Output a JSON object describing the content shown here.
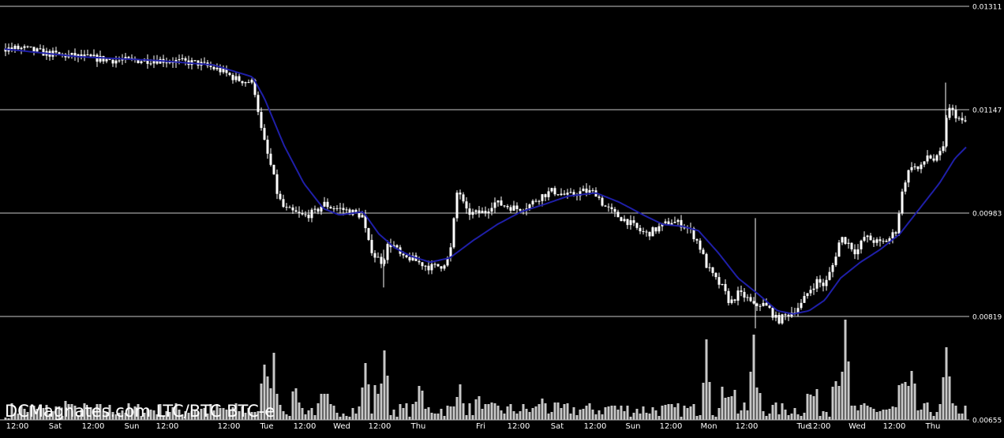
{
  "chart_data": {
    "type": "candlestick",
    "title": "DCMagnates.com LTC/BTC BTC-e",
    "y_ticks": [
      0.00655,
      0.00819,
      0.00983,
      0.01147,
      0.01311
    ],
    "y_tick_labels": [
      "0.00655",
      "0.00819",
      "0.00983",
      "0.01147",
      "0.01311"
    ],
    "ylim": [
      0.00655,
      0.01311
    ],
    "y_axis_side": "right",
    "x_tick_labels": [
      "12:00",
      "Sat",
      "12:00",
      "Sun",
      "12:00",
      "12:00",
      "Tue",
      "12:00",
      "Wed",
      "12:00",
      "Thu",
      "Fri",
      "12:00",
      "Sat",
      "12:00",
      "Sun",
      "12:00",
      "Mon",
      "12:00",
      "Tue",
      "12:00",
      "Wed",
      "12:00",
      "Thu"
    ],
    "grid": true,
    "volume_panel": true,
    "moving_average": true,
    "colors": {
      "background": "#000000",
      "grid": "#c8c8c8",
      "candle_body": "#ffffff",
      "candle_wick": "#ffffff",
      "moving_average": "#1f1fa8",
      "volume": "#c8c8c8",
      "text": "#ffffff"
    },
    "price_anchors": [
      [
        0,
        0.01244
      ],
      [
        30,
        0.01244
      ],
      [
        60,
        0.01236
      ],
      [
        100,
        0.01231
      ],
      [
        150,
        0.01225
      ],
      [
        200,
        0.01226
      ],
      [
        250,
        0.01221
      ],
      [
        280,
        0.01209
      ],
      [
        300,
        0.01195
      ],
      [
        320,
        0.0119
      ],
      [
        325,
        0.01165
      ],
      [
        330,
        0.0112
      ],
      [
        338,
        0.0108
      ],
      [
        345,
        0.0105
      ],
      [
        352,
        0.0101
      ],
      [
        360,
        0.0099
      ],
      [
        370,
        0.00985
      ],
      [
        385,
        0.00978
      ],
      [
        400,
        0.00985
      ],
      [
        410,
        0.00998
      ],
      [
        420,
        0.00992
      ],
      [
        430,
        0.0099
      ],
      [
        445,
        0.00985
      ],
      [
        460,
        0.00978
      ],
      [
        465,
        0.0094
      ],
      [
        475,
        0.00915
      ],
      [
        485,
        0.00905
      ],
      [
        492,
        0.00935
      ],
      [
        500,
        0.0093
      ],
      [
        510,
        0.0091
      ],
      [
        520,
        0.00912
      ],
      [
        530,
        0.00905
      ],
      [
        545,
        0.00897
      ],
      [
        560,
        0.009
      ],
      [
        570,
        0.00915
      ],
      [
        580,
        0.01026
      ],
      [
        590,
        0.00985
      ],
      [
        600,
        0.00982
      ],
      [
        615,
        0.00985
      ],
      [
        625,
        0.01
      ],
      [
        640,
        0.00995
      ],
      [
        655,
        0.0099
      ],
      [
        670,
        0.00995
      ],
      [
        685,
        0.0101
      ],
      [
        700,
        0.01018
      ],
      [
        720,
        0.0101
      ],
      [
        740,
        0.01018
      ],
      [
        755,
        0.01015
      ],
      [
        765,
        0.00995
      ],
      [
        780,
        0.0098
      ],
      [
        795,
        0.0097
      ],
      [
        810,
        0.00955
      ],
      [
        820,
        0.0095
      ],
      [
        835,
        0.0096
      ],
      [
        850,
        0.0097
      ],
      [
        865,
        0.00965
      ],
      [
        875,
        0.00955
      ],
      [
        885,
        0.00935
      ],
      [
        895,
        0.009
      ],
      [
        905,
        0.0088
      ],
      [
        915,
        0.00865
      ],
      [
        925,
        0.0084
      ],
      [
        935,
        0.00855
      ],
      [
        945,
        0.0085
      ],
      [
        955,
        0.00835
      ],
      [
        965,
        0.0084
      ],
      [
        975,
        0.0083
      ],
      [
        985,
        0.00812
      ],
      [
        995,
        0.0082
      ],
      [
        1005,
        0.00828
      ],
      [
        1015,
        0.00838
      ],
      [
        1025,
        0.0086
      ],
      [
        1035,
        0.00875
      ],
      [
        1045,
        0.00868
      ],
      [
        1055,
        0.009
      ],
      [
        1065,
        0.00945
      ],
      [
        1075,
        0.00935
      ],
      [
        1085,
        0.0092
      ],
      [
        1095,
        0.00945
      ],
      [
        1105,
        0.0094
      ],
      [
        1115,
        0.00935
      ],
      [
        1125,
        0.0094
      ],
      [
        1135,
        0.00955
      ],
      [
        1145,
        0.0103
      ],
      [
        1155,
        0.0106
      ],
      [
        1165,
        0.0105
      ],
      [
        1175,
        0.01075
      ],
      [
        1185,
        0.01065
      ],
      [
        1195,
        0.01085
      ],
      [
        1200,
        0.0115
      ],
      [
        1210,
        0.0114
      ],
      [
        1220,
        0.01125
      ],
      [
        1226,
        0.0113
      ]
    ],
    "ma_anchors": [
      [
        0,
        0.01244
      ],
      [
        100,
        0.01231
      ],
      [
        200,
        0.01225
      ],
      [
        270,
        0.01218
      ],
      [
        320,
        0.01199
      ],
      [
        335,
        0.01165
      ],
      [
        360,
        0.0109
      ],
      [
        385,
        0.0103
      ],
      [
        410,
        0.0099
      ],
      [
        430,
        0.0098
      ],
      [
        460,
        0.00985
      ],
      [
        480,
        0.0095
      ],
      [
        500,
        0.00928
      ],
      [
        520,
        0.00915
      ],
      [
        545,
        0.00905
      ],
      [
        570,
        0.00912
      ],
      [
        600,
        0.0094
      ],
      [
        630,
        0.00965
      ],
      [
        660,
        0.00985
      ],
      [
        690,
        0.00997
      ],
      [
        720,
        0.0101
      ],
      [
        755,
        0.01015
      ],
      [
        785,
        0.01
      ],
      [
        815,
        0.0098
      ],
      [
        840,
        0.00965
      ],
      [
        865,
        0.00962
      ],
      [
        885,
        0.00955
      ],
      [
        910,
        0.0092
      ],
      [
        935,
        0.0088
      ],
      [
        960,
        0.00855
      ],
      [
        985,
        0.00828
      ],
      [
        1005,
        0.00823
      ],
      [
        1025,
        0.00828
      ],
      [
        1045,
        0.00845
      ],
      [
        1065,
        0.0088
      ],
      [
        1090,
        0.00905
      ],
      [
        1115,
        0.00925
      ],
      [
        1140,
        0.0095
      ],
      [
        1165,
        0.0099
      ],
      [
        1190,
        0.0103
      ],
      [
        1210,
        0.0107
      ],
      [
        1226,
        0.0109
      ]
    ],
    "spikes": [
      [
        957,
        0.00975,
        0.008
      ],
      [
        486,
        0.00925,
        0.00865
      ],
      [
        1198,
        0.0119,
        0.0108
      ]
    ],
    "volume_bars": [
      [
        7,
        3
      ],
      [
        86,
        25
      ],
      [
        94,
        8
      ],
      [
        335,
        70
      ],
      [
        340,
        88
      ],
      [
        347,
        85
      ],
      [
        352,
        40
      ],
      [
        375,
        40
      ],
      [
        412,
        38
      ],
      [
        463,
        72
      ],
      [
        481,
        63
      ],
      [
        487,
        88
      ],
      [
        531,
        43
      ],
      [
        583,
        45
      ],
      [
        608,
        30
      ],
      [
        688,
        30
      ],
      [
        775,
        18
      ],
      [
        895,
        102
      ],
      [
        918,
        55
      ],
      [
        926,
        58
      ],
      [
        955,
        108
      ],
      [
        960,
        60
      ],
      [
        1029,
        48
      ],
      [
        1058,
        92
      ],
      [
        1071,
        127
      ],
      [
        1144,
        72
      ],
      [
        1155,
        62
      ],
      [
        1199,
        92
      ]
    ]
  }
}
